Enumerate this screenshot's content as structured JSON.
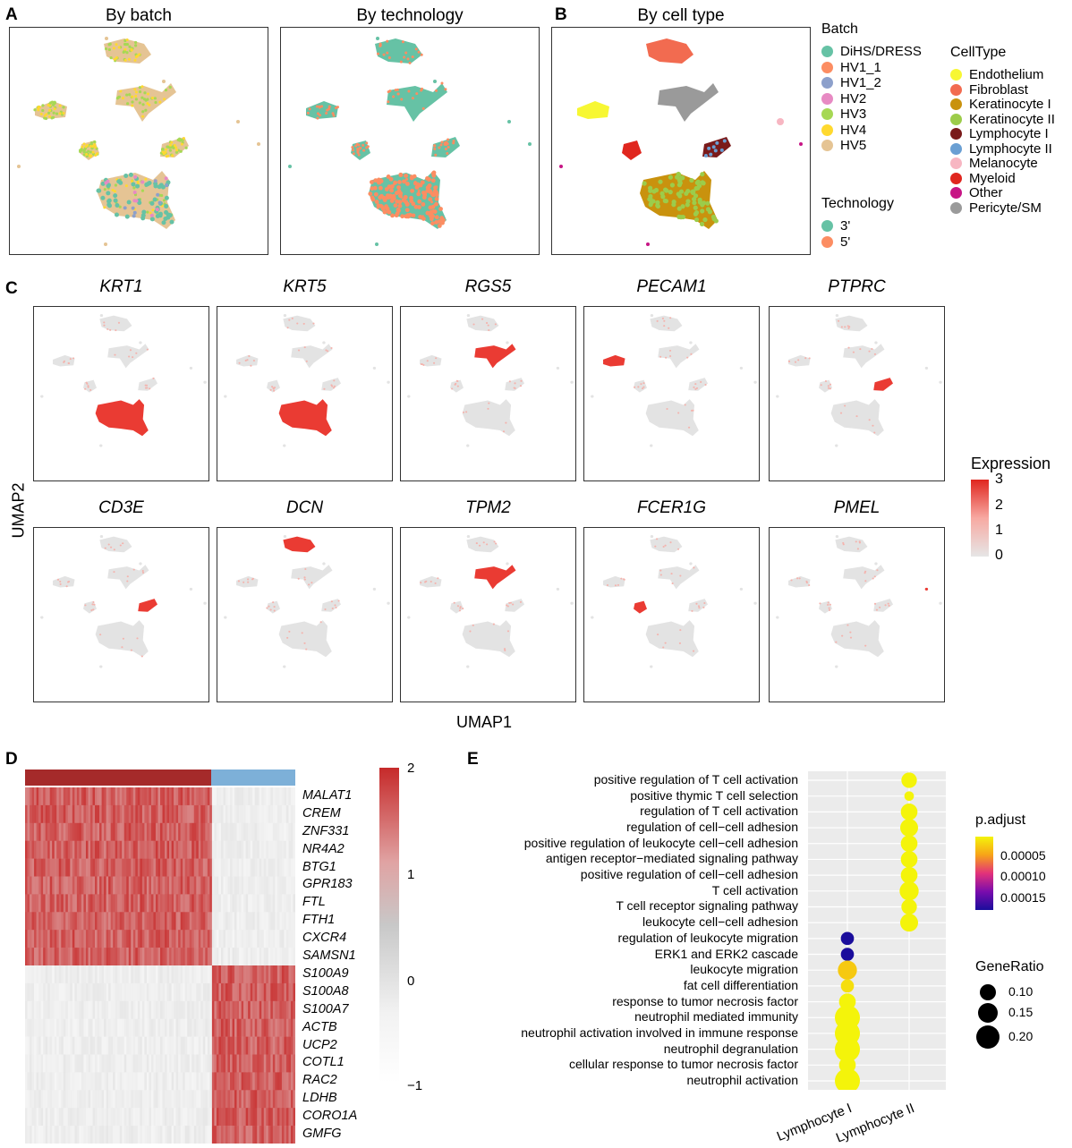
{
  "panels": {
    "A": {
      "letter": "A",
      "titles": [
        "By batch",
        "By technology"
      ]
    },
    "B": {
      "letter": "B",
      "title": "By cell type"
    },
    "C": {
      "letter": "C",
      "genes_row1": [
        "KRT1",
        "KRT5",
        "RGS5",
        "PECAM1",
        "PTPRC"
      ],
      "genes_row2": [
        "CD3E",
        "DCN",
        "TPM2",
        "FCER1G",
        "PMEL"
      ],
      "ylabel": "UMAP2",
      "xlabel": "UMAP1"
    },
    "D": {
      "letter": "D"
    },
    "E": {
      "letter": "E"
    }
  },
  "legends": {
    "batch": {
      "title": "Batch",
      "items": [
        {
          "label": "DiHS/DRESS",
          "color": "#66c2a5"
        },
        {
          "label": "HV1_1",
          "color": "#fc8d62"
        },
        {
          "label": "HV1_2",
          "color": "#8da0cb"
        },
        {
          "label": "HV2",
          "color": "#e78ac3"
        },
        {
          "label": "HV3",
          "color": "#a6d854"
        },
        {
          "label": "HV4",
          "color": "#ffd92f"
        },
        {
          "label": "HV5",
          "color": "#e5c494"
        }
      ]
    },
    "technology": {
      "title": "Technology",
      "items": [
        {
          "label": "3'",
          "color": "#66c2a5"
        },
        {
          "label": "5'",
          "color": "#fc8d62"
        }
      ]
    },
    "celltype": {
      "title": "CellType",
      "items": [
        {
          "label": "Endothelium",
          "color": "#f7f733"
        },
        {
          "label": "Fibroblast",
          "color": "#f26b50"
        },
        {
          "label": "Keratinocyte I",
          "color": "#c9920e"
        },
        {
          "label": "Keratinocyte II",
          "color": "#9ccc4a"
        },
        {
          "label": "Lymphocyte I",
          "color": "#7a1a1a"
        },
        {
          "label": "Lymphocyte II",
          "color": "#6a9fd3"
        },
        {
          "label": "Melanocyte",
          "color": "#f7b6c2"
        },
        {
          "label": "Myeloid",
          "color": "#e0261e"
        },
        {
          "label": "Other",
          "color": "#c71585"
        },
        {
          "label": "Pericyte/SM",
          "color": "#9a9a9a"
        }
      ]
    },
    "expression": {
      "title": "Expression",
      "ticks": [
        "3",
        "2",
        "1",
        "0"
      ],
      "low_color": "#e6e6e6",
      "high_color": "#e0261e"
    },
    "heatmap_scale": {
      "ticks": [
        "2",
        "1",
        "0",
        "−1"
      ],
      "low_color": "#ffffff",
      "high_color": "#c62a2a"
    },
    "padjust": {
      "title": "p.adjust",
      "ticks": [
        "0.00005",
        "0.00010",
        "0.00015"
      ]
    },
    "generatio": {
      "title": "GeneRatio",
      "items": [
        "0.10",
        "0.15",
        "0.20"
      ]
    }
  },
  "heatmap": {
    "genes": [
      "MALAT1",
      "CREM",
      "ZNF331",
      "NR4A2",
      "BTG1",
      "GPR183",
      "FTL",
      "FTH1",
      "CXCR4",
      "SAMSN1",
      "S100A9",
      "S100A8",
      "S100A7",
      "ACTB",
      "UCP2",
      "COTL1",
      "RAC2",
      "LDHB",
      "CORO1A",
      "GMFG"
    ],
    "group_colors": [
      "#a52a2a",
      "#7db0d8"
    ]
  },
  "chart_data": {
    "type": "scatter",
    "title": "",
    "xlabel": "",
    "ylabel": "",
    "categories": [
      "Lymphocyte I",
      "Lymphocyte II"
    ],
    "terms": [
      "positive regulation of T cell activation",
      "positive thymic T cell selection",
      "regulation of T cell activation",
      "regulation of cell−cell adhesion",
      "positive regulation of leukocyte cell−cell adhesion",
      "antigen receptor−mediated signaling pathway",
      "positive regulation of cell−cell adhesion",
      "T cell activation",
      "T cell receptor signaling pathway",
      "leukocyte cell−cell adhesion",
      "regulation of leukocyte migration",
      "ERK1 and ERK2 cascade",
      "leukocyte migration",
      "fat cell differentiation",
      "response to tumor necrosis factor",
      "neutrophil mediated immunity",
      "neutrophil activation involved in immune response",
      "neutrophil degranulation",
      "cellular response to tumor necrosis factor",
      "neutrophil activation"
    ],
    "points": [
      {
        "term": "positive regulation of T cell activation",
        "cluster": "Lymphocyte II",
        "gene_ratio": 0.12,
        "p_adjust": 2e-05
      },
      {
        "term": "positive thymic T cell selection",
        "cluster": "Lymphocyte II",
        "gene_ratio": 0.07,
        "p_adjust": 2e-05
      },
      {
        "term": "regulation of T cell activation",
        "cluster": "Lymphocyte II",
        "gene_ratio": 0.13,
        "p_adjust": 2e-05
      },
      {
        "term": "regulation of cell−cell adhesion",
        "cluster": "Lymphocyte II",
        "gene_ratio": 0.14,
        "p_adjust": 2e-05
      },
      {
        "term": "positive regulation of leukocyte cell−cell adhesion",
        "cluster": "Lymphocyte II",
        "gene_ratio": 0.13,
        "p_adjust": 2e-05
      },
      {
        "term": "antigen receptor−mediated signaling pathway",
        "cluster": "Lymphocyte II",
        "gene_ratio": 0.13,
        "p_adjust": 2e-05
      },
      {
        "term": "positive regulation of cell−cell adhesion",
        "cluster": "Lymphocyte II",
        "gene_ratio": 0.13,
        "p_adjust": 2e-05
      },
      {
        "term": "T cell activation",
        "cluster": "Lymphocyte II",
        "gene_ratio": 0.15,
        "p_adjust": 2e-05
      },
      {
        "term": "T cell receptor signaling pathway",
        "cluster": "Lymphocyte II",
        "gene_ratio": 0.12,
        "p_adjust": 2e-05
      },
      {
        "term": "leukocyte cell−cell adhesion",
        "cluster": "Lymphocyte II",
        "gene_ratio": 0.14,
        "p_adjust": 2e-05
      },
      {
        "term": "regulation of leukocyte migration",
        "cluster": "Lymphocyte I",
        "gene_ratio": 0.1,
        "p_adjust": 0.00017
      },
      {
        "term": "ERK1 and ERK2 cascade",
        "cluster": "Lymphocyte I",
        "gene_ratio": 0.1,
        "p_adjust": 0.00017
      },
      {
        "term": "leukocyte migration",
        "cluster": "Lymphocyte I",
        "gene_ratio": 0.15,
        "p_adjust": 4e-05
      },
      {
        "term": "fat cell differentiation",
        "cluster": "Lymphocyte I",
        "gene_ratio": 0.1,
        "p_adjust": 3e-05
      },
      {
        "term": "response to tumor necrosis factor",
        "cluster": "Lymphocyte I",
        "gene_ratio": 0.13,
        "p_adjust": 2e-05
      },
      {
        "term": "neutrophil mediated immunity",
        "cluster": "Lymphocyte I",
        "gene_ratio": 0.2,
        "p_adjust": 2e-05
      },
      {
        "term": "neutrophil activation involved in immune response",
        "cluster": "Lymphocyte I",
        "gene_ratio": 0.2,
        "p_adjust": 2e-05
      },
      {
        "term": "neutrophil degranulation",
        "cluster": "Lymphocyte I",
        "gene_ratio": 0.2,
        "p_adjust": 2e-05
      },
      {
        "term": "cellular response to tumor necrosis factor",
        "cluster": "Lymphocyte I",
        "gene_ratio": 0.13,
        "p_adjust": 2e-05
      },
      {
        "term": "neutrophil activation",
        "cluster": "Lymphocyte I",
        "gene_ratio": 0.2,
        "p_adjust": 2e-05
      }
    ],
    "p_adjust_range": [
      2e-05,
      0.00017
    ],
    "gene_ratio_range": [
      0.05,
      0.2
    ],
    "grid": true
  }
}
